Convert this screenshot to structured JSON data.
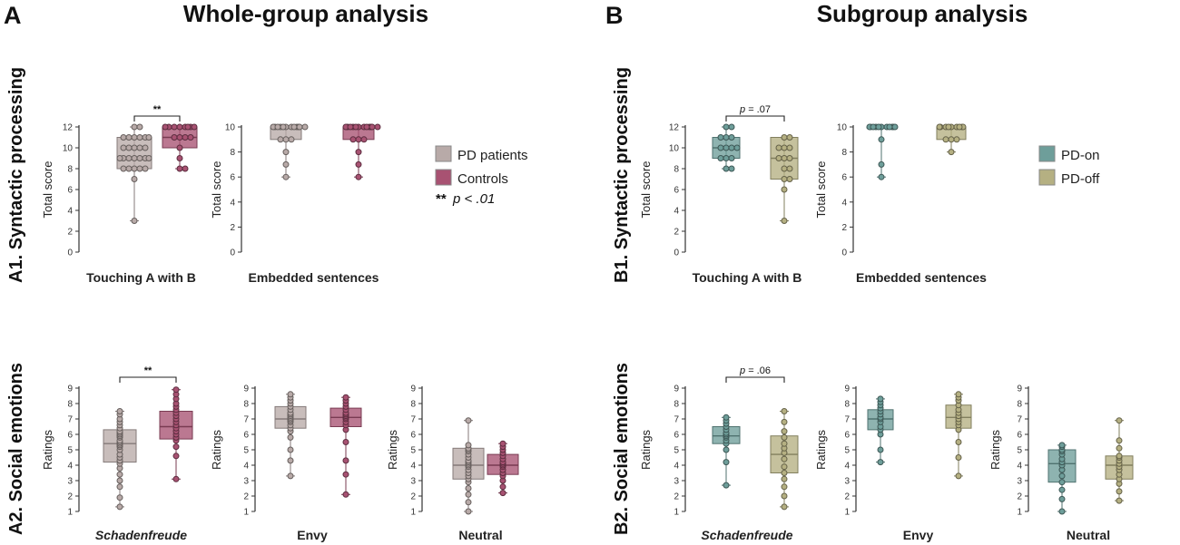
{
  "header": {
    "panel_a_letter": "A",
    "panel_a_title": "Whole-group analysis",
    "panel_b_letter": "B",
    "panel_b_title": "Subgroup analysis"
  },
  "rows": {
    "a1": "A1. Syntactic processing",
    "a2": "A2. Social emotions",
    "b1": "B1. Syntactic processing",
    "b2": "B2. Social emotions"
  },
  "legend_a": {
    "items": [
      {
        "label": "PD patients",
        "color": "#b8aaa8"
      },
      {
        "label": "Controls",
        "color": "#a85272"
      }
    ],
    "sig_stars": "**",
    "sig_text": "p < .01"
  },
  "legend_b": {
    "items": [
      {
        "label": "PD-on",
        "color": "#6e9e9a"
      },
      {
        "label": "PD-off",
        "color": "#b5b082"
      }
    ]
  },
  "chart_data": [
    {
      "type": "box",
      "title": "Touching A with B",
      "xlabel": "Touching A with B",
      "ylabel": "Total score",
      "ylim": [
        0,
        12
      ],
      "yticks": [
        0,
        2,
        4,
        6,
        8,
        10,
        12
      ],
      "groups": [
        {
          "name": "PD patients",
          "color": "#b8aaa8",
          "min": 3,
          "q1": 8,
          "median": 9,
          "q3": 11,
          "max": 12,
          "points": [
            3,
            7,
            8,
            8,
            8,
            8,
            8,
            9,
            9,
            9,
            9,
            9,
            9,
            9,
            10,
            10,
            10,
            10,
            10,
            11,
            11,
            11,
            11,
            11,
            11,
            12,
            12
          ]
        },
        {
          "name": "Controls",
          "color": "#a85272",
          "min": 8,
          "q1": 10,
          "median": 11,
          "q3": 12,
          "max": 12,
          "points": [
            8,
            8,
            9,
            10,
            11,
            11,
            11,
            11,
            12,
            12,
            12,
            12,
            12,
            12,
            12,
            12
          ]
        }
      ],
      "annotation": {
        "text": "**",
        "between": [
          0,
          1
        ]
      }
    },
    {
      "type": "box",
      "title": "Embedded sentences",
      "xlabel": "Embedded sentences",
      "ylabel": "Total score",
      "ylim": [
        0,
        10
      ],
      "yticks": [
        0,
        2,
        4,
        6,
        8,
        10
      ],
      "groups": [
        {
          "name": "PD patients",
          "color": "#b8aaa8",
          "min": 6,
          "q1": 9,
          "median": 10,
          "q3": 10,
          "max": 10,
          "points": [
            6,
            7,
            8,
            9,
            9,
            9,
            10,
            10,
            10,
            10,
            10,
            10,
            10,
            10,
            10,
            10,
            10,
            10
          ]
        },
        {
          "name": "Controls",
          "color": "#a85272",
          "min": 6,
          "q1": 9,
          "median": 10,
          "q3": 10,
          "max": 10,
          "points": [
            6,
            7,
            8,
            9,
            9,
            9,
            10,
            10,
            10,
            10,
            10,
            10,
            10,
            10,
            10,
            10,
            10,
            10
          ]
        }
      ]
    },
    {
      "type": "box",
      "title": "Schadenfreude",
      "xlabel": "Schadenfreude",
      "xlabel_italic": true,
      "ylabel": "Ratings",
      "ylim": [
        1,
        9
      ],
      "yticks": [
        1,
        2,
        3,
        4,
        5,
        6,
        7,
        8,
        9
      ],
      "groups": [
        {
          "name": "PD patients",
          "color": "#b8aaa8",
          "min": 1.3,
          "q1": 4.2,
          "median": 5.4,
          "q3": 6.3,
          "max": 7.5,
          "points": [
            1.3,
            1.9,
            2.6,
            3.0,
            3.4,
            3.8,
            4.1,
            4.3,
            4.5,
            4.7,
            5.0,
            5.2,
            5.3,
            5.4,
            5.5,
            5.6,
            5.8,
            5.9,
            6.0,
            6.1,
            6.2,
            6.4,
            6.6,
            6.8,
            7.0,
            7.3,
            7.5
          ]
        },
        {
          "name": "Controls",
          "color": "#a85272",
          "min": 3.1,
          "q1": 5.7,
          "median": 6.5,
          "q3": 7.5,
          "max": 8.9,
          "points": [
            3.1,
            4.6,
            5.2,
            5.6,
            5.8,
            6.0,
            6.2,
            6.4,
            6.6,
            6.8,
            7.0,
            7.2,
            7.4,
            7.6,
            7.8,
            8.0,
            8.3,
            8.6,
            8.9
          ]
        }
      ],
      "annotation": {
        "text": "**",
        "between": [
          0,
          1
        ]
      }
    },
    {
      "type": "box",
      "title": "Envy",
      "xlabel": "Envy",
      "ylabel": "Ratings",
      "ylim": [
        1,
        9
      ],
      "yticks": [
        1,
        2,
        3,
        4,
        5,
        6,
        7,
        8,
        9
      ],
      "groups": [
        {
          "name": "PD patients",
          "color": "#b8aaa8",
          "min": 3.3,
          "q1": 6.4,
          "median": 7.0,
          "q3": 7.8,
          "max": 8.6,
          "points": [
            3.3,
            4.3,
            5.0,
            5.8,
            6.2,
            6.4,
            6.6,
            6.8,
            6.9,
            7.0,
            7.1,
            7.2,
            7.3,
            7.4,
            7.6,
            7.8,
            8.0,
            8.2,
            8.4,
            8.6
          ]
        },
        {
          "name": "Controls",
          "color": "#a85272",
          "min": 2.1,
          "q1": 6.5,
          "median": 7.1,
          "q3": 7.7,
          "max": 8.4,
          "points": [
            2.1,
            3.4,
            4.3,
            5.5,
            6.3,
            6.6,
            6.8,
            7.0,
            7.1,
            7.2,
            7.3,
            7.4,
            7.6,
            7.8,
            8.0,
            8.2,
            8.4
          ]
        }
      ]
    },
    {
      "type": "box",
      "title": "Neutral",
      "xlabel": "Neutral",
      "ylabel": "Ratings",
      "ylim": [
        1,
        9
      ],
      "yticks": [
        1,
        2,
        3,
        4,
        5,
        6,
        7,
        8,
        9
      ],
      "groups": [
        {
          "name": "PD patients",
          "color": "#b8aaa8",
          "min": 1.0,
          "q1": 3.1,
          "median": 4.0,
          "q3": 5.1,
          "max": 6.9,
          "points": [
            1.0,
            1.6,
            2.1,
            2.5,
            2.9,
            3.1,
            3.3,
            3.5,
            3.7,
            3.9,
            4.0,
            4.1,
            4.2,
            4.3,
            4.5,
            4.7,
            4.9,
            5.0,
            5.1,
            5.3,
            6.9
          ]
        },
        {
          "name": "Controls",
          "color": "#a85272",
          "min": 2.2,
          "q1": 3.4,
          "median": 4.0,
          "q3": 4.7,
          "max": 5.4,
          "points": [
            2.2,
            2.6,
            3.0,
            3.3,
            3.5,
            3.7,
            3.9,
            4.0,
            4.1,
            4.2,
            4.4,
            4.6,
            4.8,
            5.0,
            5.2,
            5.4
          ]
        }
      ]
    },
    {
      "type": "box",
      "title": "Touching A with B",
      "xlabel": "Touching A with B",
      "ylabel": "Total score",
      "ylim": [
        0,
        12
      ],
      "yticks": [
        0,
        2,
        4,
        6,
        8,
        10,
        12
      ],
      "groups": [
        {
          "name": "PD-on",
          "color": "#6e9e9a",
          "min": 8,
          "q1": 9,
          "median": 10,
          "q3": 11,
          "max": 12,
          "points": [
            8,
            8,
            9,
            9,
            9,
            10,
            10,
            10,
            10,
            11,
            11,
            11,
            12,
            12
          ]
        },
        {
          "name": "PD-off",
          "color": "#b5b082",
          "min": 3,
          "q1": 7,
          "median": 9,
          "q3": 11,
          "max": 11,
          "points": [
            3,
            6,
            7,
            7,
            8,
            8,
            9,
            9,
            9,
            10,
            10,
            10,
            11,
            11
          ]
        }
      ],
      "annotation": {
        "text_prefix": "p",
        "text": " = .07",
        "between": [
          0,
          1
        ]
      }
    },
    {
      "type": "box",
      "title": "Embedded sentences",
      "xlabel": "Embedded sentences",
      "ylabel": "Total score",
      "ylim": [
        0,
        10
      ],
      "yticks": [
        0,
        2,
        4,
        6,
        8,
        10
      ],
      "groups": [
        {
          "name": "PD-on",
          "color": "#6e9e9a",
          "min": 6,
          "q1": 10,
          "median": 10,
          "q3": 10,
          "max": 10,
          "points": [
            6,
            7,
            9,
            10,
            10,
            10,
            10,
            10,
            10,
            10,
            10,
            10,
            10,
            10
          ]
        },
        {
          "name": "PD-off",
          "color": "#b5b082",
          "min": 8,
          "q1": 9,
          "median": 10,
          "q3": 10,
          "max": 10,
          "points": [
            8,
            9,
            9,
            9,
            10,
            10,
            10,
            10,
            10,
            10,
            10,
            10,
            10
          ]
        }
      ]
    },
    {
      "type": "box",
      "title": "Schadenfreude",
      "xlabel": "Schadenfreude",
      "xlabel_italic": true,
      "ylabel": "Ratings",
      "ylim": [
        1,
        9
      ],
      "yticks": [
        1,
        2,
        3,
        4,
        5,
        6,
        7,
        8,
        9
      ],
      "groups": [
        {
          "name": "PD-on",
          "color": "#6e9e9a",
          "min": 2.7,
          "q1": 5.4,
          "median": 5.9,
          "q3": 6.5,
          "max": 7.1,
          "points": [
            2.7,
            4.2,
            5.0,
            5.4,
            5.6,
            5.8,
            5.9,
            6.0,
            6.1,
            6.3,
            6.5,
            6.7,
            6.9,
            7.1
          ]
        },
        {
          "name": "PD-off",
          "color": "#b5b082",
          "min": 1.3,
          "q1": 3.5,
          "median": 4.7,
          "q3": 5.9,
          "max": 7.5,
          "points": [
            1.3,
            2.0,
            2.6,
            3.1,
            3.5,
            3.9,
            4.4,
            4.8,
            5.1,
            5.4,
            5.8,
            6.2,
            6.8,
            7.5
          ]
        }
      ],
      "annotation": {
        "text_prefix": "p",
        "text": " = .06",
        "between": [
          0,
          1
        ]
      }
    },
    {
      "type": "box",
      "title": "Envy",
      "xlabel": "Envy",
      "ylabel": "Ratings",
      "ylim": [
        1,
        9
      ],
      "yticks": [
        1,
        2,
        3,
        4,
        5,
        6,
        7,
        8,
        9
      ],
      "groups": [
        {
          "name": "PD-on",
          "color": "#6e9e9a",
          "min": 4.2,
          "q1": 6.3,
          "median": 7.0,
          "q3": 7.6,
          "max": 8.3,
          "points": [
            4.2,
            5.0,
            6.0,
            6.3,
            6.5,
            6.8,
            7.0,
            7.1,
            7.3,
            7.5,
            7.7,
            7.9,
            8.1,
            8.3
          ]
        },
        {
          "name": "PD-off",
          "color": "#b5b082",
          "min": 3.3,
          "q1": 6.4,
          "median": 7.1,
          "q3": 7.9,
          "max": 8.6,
          "points": [
            3.3,
            4.5,
            5.5,
            6.3,
            6.6,
            6.8,
            7.0,
            7.2,
            7.4,
            7.6,
            7.9,
            8.2,
            8.4,
            8.6
          ]
        }
      ]
    },
    {
      "type": "box",
      "title": "Neutral",
      "xlabel": "Neutral",
      "ylabel": "Ratings",
      "ylim": [
        1,
        9
      ],
      "yticks": [
        1,
        2,
        3,
        4,
        5,
        6,
        7,
        8,
        9
      ],
      "groups": [
        {
          "name": "PD-on",
          "color": "#6e9e9a",
          "min": 1.0,
          "q1": 2.9,
          "median": 4.1,
          "q3": 5.0,
          "max": 5.3,
          "points": [
            1.0,
            1.8,
            2.4,
            2.9,
            3.3,
            3.7,
            4.0,
            4.2,
            4.4,
            4.7,
            4.9,
            5.0,
            5.2,
            5.3
          ]
        },
        {
          "name": "PD-off",
          "color": "#b5b082",
          "min": 1.7,
          "q1": 3.1,
          "median": 4.0,
          "q3": 4.6,
          "max": 6.9,
          "points": [
            1.7,
            2.3,
            2.8,
            3.1,
            3.4,
            3.7,
            3.9,
            4.1,
            4.3,
            4.5,
            4.6,
            5.1,
            5.6,
            6.9
          ]
        }
      ]
    }
  ]
}
